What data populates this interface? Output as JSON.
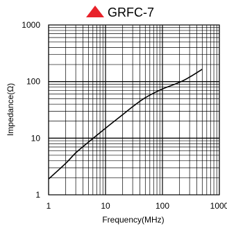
{
  "chart_data": {
    "type": "line",
    "title": "GRFC-7",
    "title_marker": "red-triangle",
    "title_marker_color": "#e8222a",
    "xlabel": "Frequency(MHz)",
    "ylabel": "Impedance(Ω)",
    "x_scale": "log",
    "y_scale": "log",
    "xlim": [
      1,
      1000
    ],
    "ylim": [
      1,
      1000
    ],
    "x_ticks": [
      {
        "value": 1,
        "label": "1"
      },
      {
        "value": 10,
        "label": "10"
      },
      {
        "value": 100,
        "label": "100"
      },
      {
        "value": 1000,
        "label": "1000"
      }
    ],
    "y_ticks": [
      {
        "value": 1,
        "label": "1"
      },
      {
        "value": 10,
        "label": "10"
      },
      {
        "value": 100,
        "label": "100"
      },
      {
        "value": 1000,
        "label": "1000"
      }
    ],
    "grid": true,
    "line_color": "#000000",
    "series": [
      {
        "x": [
          1,
          2,
          3,
          5,
          10,
          20,
          30,
          50,
          100,
          200,
          300,
          500
        ],
        "y": [
          1.9,
          3.6,
          5.5,
          8.5,
          15,
          26,
          36,
          52,
          74,
          97,
          120,
          165
        ]
      }
    ]
  }
}
